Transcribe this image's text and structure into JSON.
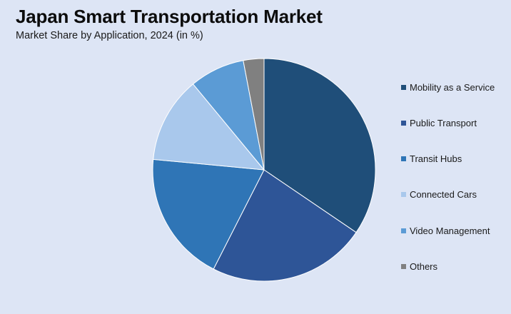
{
  "title": "Japan Smart Transportation Market",
  "subtitle": "Market Share by Application, 2024 (in %)",
  "chart_data": {
    "type": "pie",
    "title": "Japan Smart Transportation Market",
    "subtitle": "Market Share by Application, 2024 (in %)",
    "legend_position": "right",
    "start_angle": "12 o'clock",
    "direction": "clockwise",
    "slices": [
      {
        "label": "Mobility as a Service",
        "value": 34.5,
        "color": "#1f4e79"
      },
      {
        "label": "Public Transport",
        "value": 23.0,
        "color": "#2e5597"
      },
      {
        "label": "Transit Hubs",
        "value": 19.0,
        "color": "#2f75b6"
      },
      {
        "label": "Connected Cars",
        "value": 12.5,
        "color": "#a9c8ec"
      },
      {
        "label": "Video Management",
        "value": 8.0,
        "color": "#5b9bd5"
      },
      {
        "label": "Others",
        "value": 3.0,
        "color": "#808080"
      }
    ]
  }
}
